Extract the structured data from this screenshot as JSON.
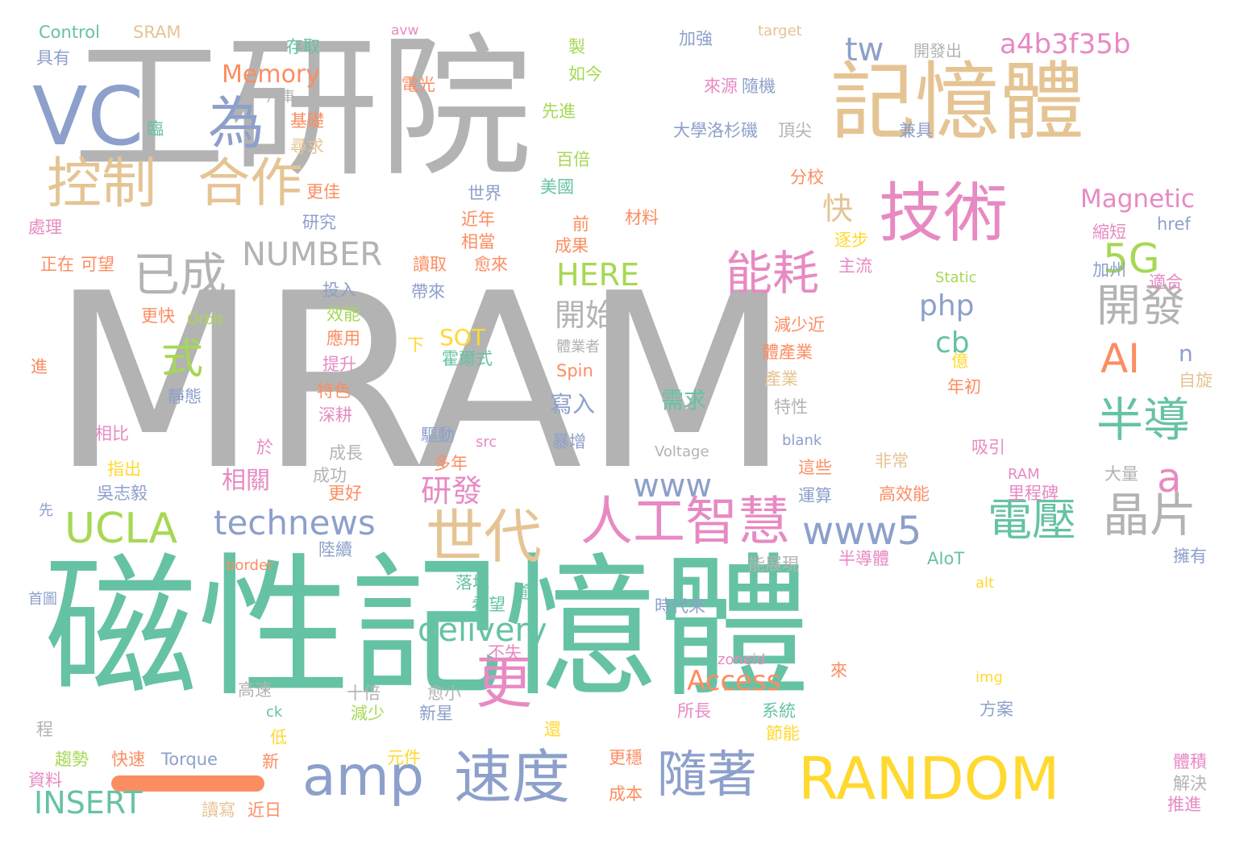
{
  "colors": {
    "background": "#ffffff",
    "gray": "#b3b3b3",
    "teal": "#66c2a5",
    "orange": "#fc8d62",
    "blue": "#8da0cb",
    "pink": "#e78ac3",
    "green": "#a6d854",
    "yellow": "#ffd92f",
    "tan": "#e5c494"
  },
  "decor": {
    "underline_bar_color": "#fc8d62"
  },
  "words": [
    {
      "text": "MRAM",
      "color": "gray"
    },
    {
      "text": "工研院",
      "color": "gray"
    },
    {
      "text": "磁性記憶體",
      "color": "teal"
    },
    {
      "text": "記憶體",
      "color": "tan"
    },
    {
      "text": "技術",
      "color": "pink"
    },
    {
      "text": "VC",
      "color": "blue"
    },
    {
      "text": "為",
      "color": "blue"
    },
    {
      "text": "控制",
      "color": "tan"
    },
    {
      "text": "合作",
      "color": "tan"
    },
    {
      "text": "已成",
      "color": "gray"
    },
    {
      "text": "NUMBER",
      "color": "gray"
    },
    {
      "text": "式",
      "color": "green"
    },
    {
      "text": "能耗",
      "color": "pink"
    },
    {
      "text": "快",
      "color": "tan"
    },
    {
      "text": "tw",
      "color": "blue"
    },
    {
      "text": "a4b3f35b",
      "color": "pink"
    },
    {
      "text": "Magnetic",
      "color": "pink"
    },
    {
      "text": "5G",
      "color": "green"
    },
    {
      "text": "開發",
      "color": "gray"
    },
    {
      "text": "php",
      "color": "blue"
    },
    {
      "text": "cb",
      "color": "teal"
    },
    {
      "text": "AI",
      "color": "orange"
    },
    {
      "text": "n",
      "color": "blue"
    },
    {
      "text": "半導",
      "color": "teal"
    },
    {
      "text": "a",
      "color": "pink"
    },
    {
      "text": "晶片",
      "color": "gray"
    },
    {
      "text": "電壓",
      "color": "teal"
    },
    {
      "text": "www5",
      "color": "blue"
    },
    {
      "text": "www",
      "color": "blue"
    },
    {
      "text": "人工智慧",
      "color": "pink"
    },
    {
      "text": "世代",
      "color": "tan"
    },
    {
      "text": "更",
      "color": "pink"
    },
    {
      "text": "UCLA",
      "color": "green"
    },
    {
      "text": "technews",
      "color": "blue"
    },
    {
      "text": "amp",
      "color": "blue"
    },
    {
      "text": "速度",
      "color": "blue"
    },
    {
      "text": "隨著",
      "color": "blue"
    },
    {
      "text": "RANDOM",
      "color": "yellow"
    },
    {
      "text": "INSERT",
      "color": "teal"
    },
    {
      "text": "delivery",
      "color": "teal"
    },
    {
      "text": "Access",
      "color": "orange"
    },
    {
      "text": "研發",
      "color": "pink"
    },
    {
      "text": "相關",
      "color": "pink"
    },
    {
      "text": "需求",
      "color": "teal"
    },
    {
      "text": "寫入",
      "color": "blue"
    },
    {
      "text": "開始",
      "color": "gray"
    },
    {
      "text": "HERE",
      "color": "green"
    },
    {
      "text": "Memory",
      "color": "orange"
    },
    {
      "text": "SOT",
      "color": "yellow"
    },
    {
      "text": "Control",
      "color": "teal"
    },
    {
      "text": "SRAM",
      "color": "tan"
    },
    {
      "text": "avw",
      "color": "pink"
    },
    {
      "text": "target",
      "color": "tan"
    },
    {
      "text": "存取",
      "color": "teal"
    },
    {
      "text": "製",
      "color": "green"
    },
    {
      "text": "加強",
      "color": "blue"
    },
    {
      "text": "開發出",
      "color": "gray"
    },
    {
      "text": "具有",
      "color": "blue"
    },
    {
      "text": "如今",
      "color": "green"
    },
    {
      "text": "電光",
      "color": "orange"
    },
    {
      "text": "來源",
      "color": "pink"
    },
    {
      "text": "隨機",
      "color": "blue"
    },
    {
      "text": "汽車",
      "color": "gray"
    },
    {
      "text": "先進",
      "color": "green"
    },
    {
      "text": "臨",
      "color": "teal"
    },
    {
      "text": "基礎",
      "color": "orange"
    },
    {
      "text": "尋求",
      "color": "tan"
    },
    {
      "text": "大學洛杉磯",
      "color": "blue"
    },
    {
      "text": "頂尖",
      "color": "gray"
    },
    {
      "text": "兼具",
      "color": "blue"
    },
    {
      "text": "百倍",
      "color": "green"
    },
    {
      "text": "分校",
      "color": "orange"
    },
    {
      "text": "更佳",
      "color": "orange"
    },
    {
      "text": "世界",
      "color": "blue"
    },
    {
      "text": "美國",
      "color": "teal"
    },
    {
      "text": "處理",
      "color": "pink"
    },
    {
      "text": "研究",
      "color": "blue"
    },
    {
      "text": "近年",
      "color": "orange"
    },
    {
      "text": "相當",
      "color": "orange"
    },
    {
      "text": "前",
      "color": "orange"
    },
    {
      "text": "材料",
      "color": "orange"
    },
    {
      "text": "成果",
      "color": "orange"
    },
    {
      "text": "逐步",
      "color": "yellow"
    },
    {
      "text": "href",
      "color": "blue"
    },
    {
      "text": "縮短",
      "color": "pink"
    },
    {
      "text": "正在",
      "color": "orange"
    },
    {
      "text": "可望",
      "color": "orange"
    },
    {
      "text": "讀取",
      "color": "orange"
    },
    {
      "text": "愈來",
      "color": "orange"
    },
    {
      "text": "主流",
      "color": "pink"
    },
    {
      "text": "加州",
      "color": "blue"
    },
    {
      "text": "投入",
      "color": "blue"
    },
    {
      "text": "帶來",
      "color": "blue"
    },
    {
      "text": "Static",
      "color": "green"
    },
    {
      "text": "適合",
      "color": "pink"
    },
    {
      "text": "更快",
      "color": "orange"
    },
    {
      "text": "Orbit",
      "color": "green"
    },
    {
      "text": "效能",
      "color": "green"
    },
    {
      "text": "減少近",
      "color": "orange"
    },
    {
      "text": "應用",
      "color": "orange"
    },
    {
      "text": "體業者",
      "color": "gray"
    },
    {
      "text": "體產業",
      "color": "orange"
    },
    {
      "text": "下",
      "color": "yellow"
    },
    {
      "text": "提升",
      "color": "pink"
    },
    {
      "text": "霍爾式",
      "color": "teal"
    },
    {
      "text": "億",
      "color": "yellow"
    },
    {
      "text": "進",
      "color": "orange"
    },
    {
      "text": "特色",
      "color": "orange"
    },
    {
      "text": "Spin",
      "color": "orange"
    },
    {
      "text": "產業",
      "color": "tan"
    },
    {
      "text": "年初",
      "color": "orange"
    },
    {
      "text": "自旋",
      "color": "tan"
    },
    {
      "text": "靜態",
      "color": "blue"
    },
    {
      "text": "深耕",
      "color": "pink"
    },
    {
      "text": "特性",
      "color": "gray"
    },
    {
      "text": "相比",
      "color": "pink"
    },
    {
      "text": "驅動",
      "color": "blue"
    },
    {
      "text": "src",
      "color": "pink"
    },
    {
      "text": "暴增",
      "color": "blue"
    },
    {
      "text": "blank",
      "color": "blue"
    },
    {
      "text": "吸引",
      "color": "pink"
    },
    {
      "text": "於",
      "color": "pink"
    },
    {
      "text": "成長",
      "color": "gray"
    },
    {
      "text": "Voltage",
      "color": "gray"
    },
    {
      "text": "這些",
      "color": "orange"
    },
    {
      "text": "非常",
      "color": "tan"
    },
    {
      "text": "指出",
      "color": "yellow"
    },
    {
      "text": "成功",
      "color": "gray"
    },
    {
      "text": "多年",
      "color": "orange"
    },
    {
      "text": "RAM",
      "color": "pink"
    },
    {
      "text": "大量",
      "color": "gray"
    },
    {
      "text": "吳志毅",
      "color": "blue"
    },
    {
      "text": "更好",
      "color": "orange"
    },
    {
      "text": "運算",
      "color": "blue"
    },
    {
      "text": "高效能",
      "color": "orange"
    },
    {
      "text": "里程碑",
      "color": "pink"
    },
    {
      "text": "先",
      "color": "blue"
    },
    {
      "text": "陸續",
      "color": "blue"
    },
    {
      "text": "border",
      "color": "orange"
    },
    {
      "text": "能展現",
      "color": "gray"
    },
    {
      "text": "半導體",
      "color": "pink"
    },
    {
      "text": "AIoT",
      "color": "teal"
    },
    {
      "text": "擁有",
      "color": "blue"
    },
    {
      "text": "落地",
      "color": "teal"
    },
    {
      "text": "逾",
      "color": "teal"
    },
    {
      "text": "alt",
      "color": "yellow"
    },
    {
      "text": "首圖",
      "color": "blue"
    },
    {
      "text": "希望",
      "color": "teal"
    },
    {
      "text": "時代來",
      "color": "blue"
    },
    {
      "text": "不失",
      "color": "pink"
    },
    {
      "text": "zoneid",
      "color": "pink"
    },
    {
      "text": "來",
      "color": "orange"
    },
    {
      "text": "img",
      "color": "yellow"
    },
    {
      "text": "高速",
      "color": "gray"
    },
    {
      "text": "十倍",
      "color": "gray"
    },
    {
      "text": "愈小",
      "color": "gray"
    },
    {
      "text": "方案",
      "color": "blue"
    },
    {
      "text": "ck",
      "color": "teal"
    },
    {
      "text": "減少",
      "color": "green"
    },
    {
      "text": "新星",
      "color": "blue"
    },
    {
      "text": "所長",
      "color": "pink"
    },
    {
      "text": "系統",
      "color": "teal"
    },
    {
      "text": "程",
      "color": "gray"
    },
    {
      "text": "低",
      "color": "yellow"
    },
    {
      "text": "還",
      "color": "yellow"
    },
    {
      "text": "節能",
      "color": "yellow"
    },
    {
      "text": "趨勢",
      "color": "green"
    },
    {
      "text": "快速",
      "color": "orange"
    },
    {
      "text": "Torque",
      "color": "blue"
    },
    {
      "text": "新",
      "color": "orange"
    },
    {
      "text": "元件",
      "color": "yellow"
    },
    {
      "text": "更穩",
      "color": "orange"
    },
    {
      "text": "體積",
      "color": "pink"
    },
    {
      "text": "資料",
      "color": "pink"
    },
    {
      "text": "解決",
      "color": "gray"
    },
    {
      "text": "成本",
      "color": "orange"
    },
    {
      "text": "讀寫",
      "color": "tan"
    },
    {
      "text": "近日",
      "color": "orange"
    },
    {
      "text": "推進",
      "color": "pink"
    }
  ]
}
